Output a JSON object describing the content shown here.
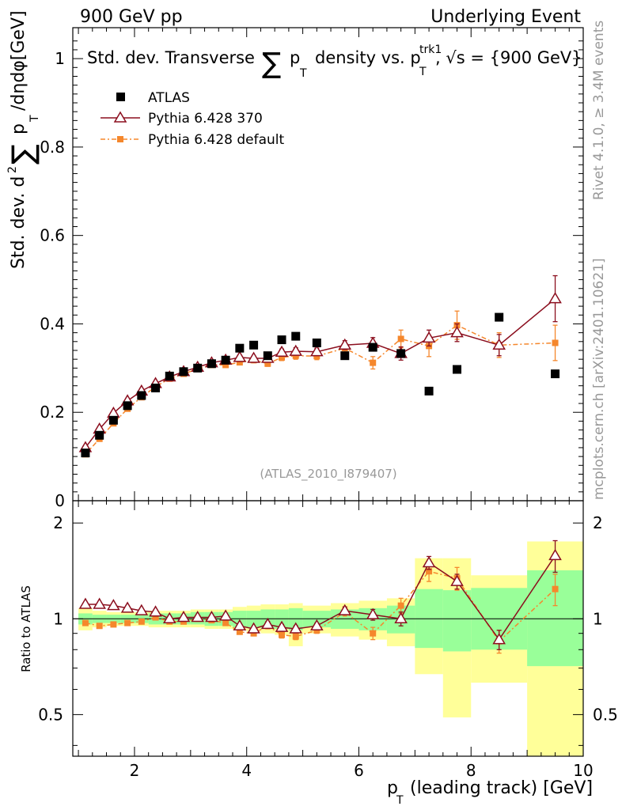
{
  "header": {
    "left": "900 GeV pp",
    "right": "Underlying Event"
  },
  "side_labels": {
    "rivet": "Rivet 4.1.0, ≥ 3.4M events",
    "mcplots": "mcplots.cern.ch [arXiv:2401.10621]"
  },
  "chart_data": [
    {
      "panel": "main",
      "type": "scatter",
      "title_parts": {
        "a": "Std. dev. Transverse",
        "sum": "∑",
        "p": "p",
        "sub": "T",
        "b": "density vs. p",
        "sup": "trk1",
        "c": ", √s = {900 GeV}"
      },
      "ylabel_parts": {
        "a": "Std. dev. d",
        "sup": "2",
        "sum": "∑",
        "b": "p",
        "sub": "T",
        "c": "/dηdφ[GeV]"
      },
      "xlim": [
        0.9,
        10.0
      ],
      "ylim": [
        0,
        1.07
      ],
      "yticks": [
        {
          "v": 0,
          "label": "0"
        },
        {
          "v": 0.2,
          "label": "0.2"
        },
        {
          "v": 0.4,
          "label": "0.4"
        },
        {
          "v": 0.6,
          "label": "0.6"
        },
        {
          "v": 0.8,
          "label": "0.8"
        },
        {
          "v": 1.0,
          "label": "1"
        }
      ],
      "watermark": "(ATLAS_2010_I879407)",
      "legend_position": "top-left",
      "x": [
        1.125,
        1.375,
        1.625,
        1.875,
        2.125,
        2.375,
        2.625,
        2.875,
        3.125,
        3.375,
        3.625,
        3.875,
        4.125,
        4.375,
        4.625,
        4.875,
        5.25,
        5.75,
        6.25,
        6.75,
        7.25,
        7.75,
        8.5,
        9.5
      ],
      "series": [
        {
          "name": "ATLAS",
          "color": "#000000",
          "marker": "square",
          "values": [
            0.108,
            0.148,
            0.182,
            0.215,
            0.238,
            0.255,
            0.282,
            0.292,
            0.3,
            0.31,
            0.318,
            0.345,
            0.352,
            0.328,
            0.364,
            0.372,
            0.357,
            0.328,
            0.347,
            0.333,
            0.248,
            0.297,
            0.415,
            0.287
          ]
        },
        {
          "name": "Pythia 6.428 370",
          "color": "#8b0e1e",
          "marker": "open-triangle",
          "line": "solid",
          "values": [
            0.12,
            0.162,
            0.198,
            0.226,
            0.248,
            0.265,
            0.28,
            0.292,
            0.302,
            0.312,
            0.318,
            0.324,
            0.322,
            0.322,
            0.336,
            0.338,
            0.337,
            0.352,
            0.356,
            0.333,
            0.368,
            0.38,
            0.352,
            0.457
          ],
          "errors": [
            0.004,
            0.004,
            0.004,
            0.004,
            0.004,
            0.004,
            0.004,
            0.004,
            0.004,
            0.004,
            0.004,
            0.005,
            0.005,
            0.006,
            0.007,
            0.008,
            0.008,
            0.01,
            0.013,
            0.015,
            0.018,
            0.02,
            0.024,
            0.052
          ]
        },
        {
          "name": "Pythia 6.428 default",
          "color": "#f5872c",
          "marker": "square-small",
          "line": "dash-dot",
          "values": [
            0.105,
            0.14,
            0.175,
            0.208,
            0.234,
            0.258,
            0.276,
            0.287,
            0.298,
            0.307,
            0.307,
            0.313,
            0.318,
            0.31,
            0.324,
            0.328,
            0.327,
            0.345,
            0.312,
            0.366,
            0.35,
            0.397,
            0.352,
            0.357
          ],
          "errors": [
            0.004,
            0.004,
            0.004,
            0.004,
            0.004,
            0.004,
            0.004,
            0.004,
            0.004,
            0.005,
            0.005,
            0.005,
            0.006,
            0.006,
            0.007,
            0.008,
            0.008,
            0.011,
            0.014,
            0.02,
            0.024,
            0.032,
            0.028,
            0.04
          ]
        }
      ]
    },
    {
      "panel": "ratio",
      "type": "line",
      "ylabel": "Ratio to ATLAS",
      "xlabel_parts": {
        "p": "p",
        "sub": "T",
        "rest": "(leading track) [GeV]"
      },
      "scale": "log",
      "ylim": [
        0.37,
        2.35
      ],
      "yticks": [
        {
          "v": 0.5,
          "label": "0.5"
        },
        {
          "v": 1,
          "label": "1"
        },
        {
          "v": 2,
          "label": "2"
        }
      ],
      "xlim": [
        0.9,
        10.0
      ],
      "xticks": [
        {
          "v": 2,
          "label": "2"
        },
        {
          "v": 4,
          "label": "4"
        },
        {
          "v": 6,
          "label": "6"
        },
        {
          "v": 8,
          "label": "8"
        },
        {
          "v": 10,
          "label": "10"
        }
      ],
      "bin_edges": [
        1.0,
        1.25,
        1.5,
        1.75,
        2.0,
        2.25,
        2.5,
        2.75,
        3.0,
        3.25,
        3.5,
        3.75,
        4.0,
        4.25,
        4.5,
        4.75,
        5.0,
        5.5,
        6.0,
        6.5,
        7.0,
        7.5,
        8.0,
        9.0,
        10.0
      ],
      "band_outer": [
        [
          0.92,
          1.08
        ],
        [
          0.94,
          1.06
        ],
        [
          0.95,
          1.05
        ],
        [
          0.95,
          1.05
        ],
        [
          0.95,
          1.05
        ],
        [
          0.94,
          1.06
        ],
        [
          0.94,
          1.06
        ],
        [
          0.94,
          1.06
        ],
        [
          0.94,
          1.07
        ],
        [
          0.93,
          1.07
        ],
        [
          0.93,
          1.07
        ],
        [
          0.92,
          1.09
        ],
        [
          0.91,
          1.1
        ],
        [
          0.9,
          1.11
        ],
        [
          0.89,
          1.11
        ],
        [
          0.82,
          1.12
        ],
        [
          0.9,
          1.1
        ],
        [
          0.88,
          1.12
        ],
        [
          0.86,
          1.14
        ],
        [
          0.82,
          1.16
        ],
        [
          0.67,
          1.55
        ],
        [
          0.49,
          1.55
        ],
        [
          0.63,
          1.37
        ],
        [
          0.36,
          1.75
        ]
      ],
      "band_inner": [
        [
          0.96,
          1.04
        ],
        [
          0.97,
          1.03
        ],
        [
          0.97,
          1.03
        ],
        [
          0.97,
          1.03
        ],
        [
          0.97,
          1.03
        ],
        [
          0.96,
          1.04
        ],
        [
          0.96,
          1.04
        ],
        [
          0.96,
          1.04
        ],
        [
          0.96,
          1.05
        ],
        [
          0.95,
          1.05
        ],
        [
          0.95,
          1.05
        ],
        [
          0.94,
          1.06
        ],
        [
          0.94,
          1.06
        ],
        [
          0.93,
          1.07
        ],
        [
          0.93,
          1.07
        ],
        [
          0.92,
          1.08
        ],
        [
          0.94,
          1.06
        ],
        [
          0.93,
          1.07
        ],
        [
          0.92,
          1.08
        ],
        [
          0.9,
          1.1
        ],
        [
          0.81,
          1.24
        ],
        [
          0.79,
          1.23
        ],
        [
          0.8,
          1.25
        ],
        [
          0.71,
          1.42
        ]
      ],
      "x": [
        1.125,
        1.375,
        1.625,
        1.875,
        2.125,
        2.375,
        2.625,
        2.875,
        3.125,
        3.375,
        3.625,
        3.875,
        4.125,
        4.375,
        4.625,
        4.875,
        5.25,
        5.75,
        6.25,
        6.75,
        7.25,
        7.75,
        8.5,
        9.5
      ],
      "series": [
        {
          "name": "Pythia 6.428 370",
          "color": "#8b0e1e",
          "values": [
            1.11,
            1.11,
            1.1,
            1.08,
            1.06,
            1.05,
            1.0,
            1.01,
            1.01,
            1.01,
            1.02,
            0.95,
            0.93,
            0.96,
            0.94,
            0.93,
            0.95,
            1.06,
            1.03,
            1.0,
            1.5,
            1.31,
            0.86,
            1.58
          ],
          "errors": [
            0.01,
            0.01,
            0.01,
            0.01,
            0.01,
            0.01,
            0.01,
            0.01,
            0.01,
            0.01,
            0.01,
            0.01,
            0.01,
            0.02,
            0.02,
            0.02,
            0.02,
            0.03,
            0.04,
            0.05,
            0.07,
            0.07,
            0.06,
            0.18
          ]
        },
        {
          "name": "Pythia 6.428 default",
          "color": "#f5872c",
          "values": [
            0.97,
            0.95,
            0.96,
            0.97,
            0.98,
            1.01,
            0.98,
            0.98,
            1.0,
            0.99,
            0.97,
            0.91,
            0.9,
            0.95,
            0.89,
            0.88,
            0.92,
            1.05,
            0.9,
            1.1,
            1.41,
            1.34,
            0.85,
            1.24
          ],
          "errors": [
            0.01,
            0.01,
            0.01,
            0.01,
            0.01,
            0.01,
            0.01,
            0.01,
            0.01,
            0.01,
            0.01,
            0.01,
            0.01,
            0.02,
            0.02,
            0.02,
            0.02,
            0.03,
            0.04,
            0.06,
            0.1,
            0.11,
            0.07,
            0.14
          ]
        }
      ]
    }
  ],
  "colors": {
    "band_outer": "#ffff99",
    "band_inner": "#99ff99",
    "atlas": "#000000",
    "p370": "#8b0e1e",
    "pdefault": "#f5872c"
  }
}
